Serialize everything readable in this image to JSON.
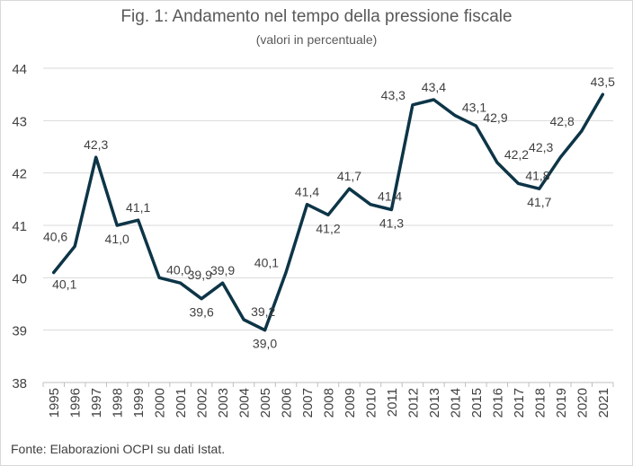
{
  "title": "Fig. 1: Andamento nel tempo della pressione fiscale",
  "subtitle": "(valori in percentuale)",
  "source": "Fonte: Elaborazioni OCPI su dati Istat.",
  "colors": {
    "line": "#0d3547",
    "text": "#404040",
    "grid": "#d9d9d9",
    "axis": "#bfbfbf"
  },
  "chart_data": {
    "type": "line",
    "title": "Fig. 1: Andamento nel tempo della pressione fiscale",
    "subtitle": "(valori in percentuale)",
    "xlabel": "",
    "ylabel": "",
    "ylim": [
      38,
      44
    ],
    "yticks": [
      "38",
      "39",
      "40",
      "41",
      "42",
      "43",
      "44"
    ],
    "grid": true,
    "categories": [
      "1995",
      "1996",
      "1997",
      "1998",
      "1999",
      "2000",
      "2001",
      "2002",
      "2003",
      "2004",
      "2005",
      "2006",
      "2007",
      "2008",
      "2009",
      "2010",
      "2011",
      "2012",
      "2013",
      "2014",
      "2015",
      "2016",
      "2017",
      "2018",
      "2019",
      "2020",
      "2021"
    ],
    "values": [
      40.1,
      40.6,
      42.3,
      41.0,
      41.1,
      40.0,
      39.9,
      39.6,
      39.9,
      39.2,
      39.0,
      40.1,
      41.4,
      41.2,
      41.7,
      41.4,
      41.3,
      43.3,
      43.4,
      43.1,
      42.9,
      42.2,
      41.8,
      41.7,
      42.3,
      42.8,
      43.5
    ],
    "labels": [
      "40,1",
      "40,6",
      "42,3",
      "41,0",
      "41,1",
      "40,0",
      "39,9",
      "39,6",
      "39,9",
      "39,2",
      "39,0",
      "40,1",
      "41,4",
      "41,2",
      "41,7",
      "41,4",
      "41,3",
      "43,3",
      "43,4",
      "43,1",
      "42,9",
      "42,2",
      "41,8",
      "41,7",
      "42,3",
      "42,8",
      "43,5"
    ]
  }
}
